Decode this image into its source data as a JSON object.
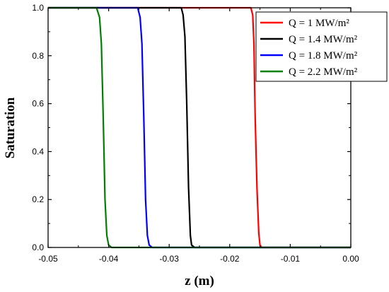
{
  "chart_data": {
    "type": "line",
    "title": "",
    "xlabel": "z (m)",
    "ylabel": "Saturation",
    "xlim": [
      -0.05,
      0.0
    ],
    "ylim": [
      0.0,
      1.0
    ],
    "x_ticks": [
      "-0.05",
      "-0.04",
      "-0.03",
      "-0.02",
      "-0.01",
      "0.00"
    ],
    "y_ticks": [
      "0.0",
      "0.2",
      "0.4",
      "0.6",
      "0.8",
      "1.0"
    ],
    "grid": false,
    "legend_position": "top-right",
    "series": [
      {
        "name": "Q = 1 MW/m²",
        "color": "#ff0000",
        "x": [
          -0.05,
          -0.0165,
          -0.0162,
          -0.016,
          -0.0158,
          -0.0155,
          -0.0152,
          -0.015,
          -0.0147,
          0.0
        ],
        "y": [
          1.0,
          1.0,
          0.97,
          0.85,
          0.55,
          0.25,
          0.06,
          0.01,
          0.0,
          0.0
        ]
      },
      {
        "name": "Q = 1.4 MW/m²",
        "color": "#000000",
        "x": [
          -0.05,
          -0.028,
          -0.0277,
          -0.0274,
          -0.0271,
          -0.0268,
          -0.0265,
          -0.0263,
          -0.0258,
          0.0
        ],
        "y": [
          1.0,
          1.0,
          0.97,
          0.88,
          0.6,
          0.25,
          0.05,
          0.01,
          0.0,
          0.0
        ]
      },
      {
        "name": "Q = 1.8 MW/m²",
        "color": "#0000ff",
        "x": [
          -0.05,
          -0.0352,
          -0.0348,
          -0.0345,
          -0.0342,
          -0.0339,
          -0.0336,
          -0.0333,
          -0.0328,
          0.0
        ],
        "y": [
          1.0,
          1.0,
          0.96,
          0.85,
          0.55,
          0.2,
          0.05,
          0.01,
          0.0,
          0.0
        ]
      },
      {
        "name": "Q = 2.2 MW/m²",
        "color": "#008000",
        "x": [
          -0.05,
          -0.042,
          -0.0415,
          -0.0412,
          -0.0409,
          -0.0406,
          -0.0403,
          -0.04,
          -0.0395,
          0.0
        ],
        "y": [
          1.0,
          1.0,
          0.96,
          0.85,
          0.55,
          0.2,
          0.05,
          0.01,
          0.0,
          0.0
        ]
      }
    ]
  }
}
